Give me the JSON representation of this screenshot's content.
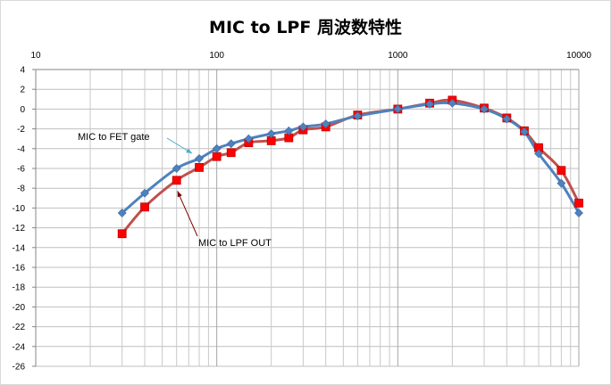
{
  "chart_data": {
    "type": "line",
    "title": "MIC to LPF 周波数特性",
    "xscale": "log",
    "xlim": [
      10,
      10000
    ],
    "ylim": [
      -26,
      4
    ],
    "xticks": [
      10,
      100,
      1000,
      10000
    ],
    "xtick_labels": [
      "10",
      "100",
      "1000",
      "10000"
    ],
    "yticks": [
      4,
      2,
      0,
      -2,
      -4,
      -6,
      -8,
      -10,
      -12,
      -14,
      -16,
      -18,
      -20,
      -22,
      -24,
      -26
    ],
    "ytick_labels": [
      "4",
      "2",
      "0",
      "-2",
      "-4",
      "-6",
      "-8",
      "-10",
      "-12",
      "-14",
      "-16",
      "-18",
      "-20",
      "-22",
      "-24",
      "-26"
    ],
    "grid": true,
    "series": [
      {
        "name": "MIC to FET gate",
        "color": "#4f81bd",
        "marker": "diamond",
        "x": [
          30,
          40,
          60,
          80,
          100,
          120,
          150,
          200,
          250,
          300,
          400,
          600,
          1000,
          1500,
          2000,
          3000,
          4000,
          5000,
          6000,
          8000,
          10000
        ],
        "y": [
          -10.5,
          -8.5,
          -6.0,
          -5.0,
          -4.0,
          -3.5,
          -3.0,
          -2.5,
          -2.2,
          -1.8,
          -1.5,
          -0.7,
          0.0,
          0.5,
          0.6,
          0.0,
          -1.0,
          -2.3,
          -4.5,
          -7.5,
          -10.5
        ]
      },
      {
        "name": "MIC to LPF OUT",
        "color": "#c0504d",
        "marker": "square",
        "x": [
          30,
          40,
          60,
          80,
          100,
          120,
          150,
          200,
          250,
          300,
          400,
          600,
          1000,
          1500,
          2000,
          3000,
          4000,
          5000,
          6000,
          8000,
          10000
        ],
        "y": [
          -12.6,
          -9.9,
          -7.2,
          -5.9,
          -4.8,
          -4.4,
          -3.4,
          -3.2,
          -2.9,
          -2.1,
          -1.8,
          -0.6,
          0.0,
          0.6,
          0.9,
          0.1,
          -0.9,
          -2.2,
          -3.9,
          -6.2,
          -9.5
        ]
      }
    ],
    "annotations": [
      {
        "text": "MIC to FET gate",
        "series": 0,
        "target_x": 80,
        "target_y": -4.3,
        "arrow_color": "#4bacc6"
      },
      {
        "text": "MIC to LPF OUT",
        "series": 1,
        "target_x": 60,
        "target_y": -8.2,
        "arrow_color": "#7f0000"
      }
    ]
  }
}
